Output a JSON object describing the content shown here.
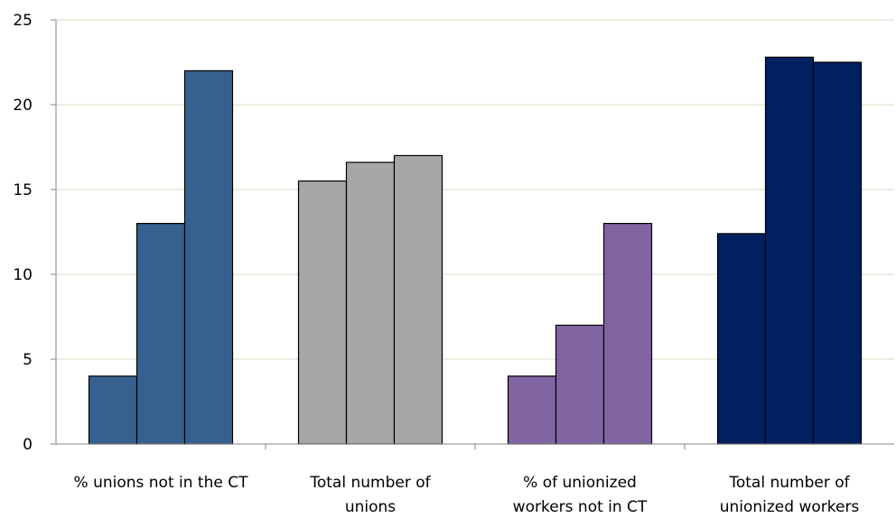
{
  "chart_data": {
    "type": "bar",
    "categories": [
      "% unions not in the CT",
      "Total number of unions",
      "% of unionized workers not in CT",
      "Total number of unionized workers"
    ],
    "category_lines": [
      [
        "% unions not in the CT"
      ],
      [
        "Total number of",
        "unions"
      ],
      [
        "% of unionized",
        "workers not in CT"
      ],
      [
        "Total number of",
        "unionized workers"
      ]
    ],
    "groups": [
      {
        "values": [
          4,
          13,
          22
        ],
        "color": "#36608F"
      },
      {
        "values": [
          15.5,
          16.6,
          17
        ],
        "color": "#A6A6A6"
      },
      {
        "values": [
          4,
          7,
          13
        ],
        "color": "#8064A2"
      },
      {
        "values": [
          12.4,
          22.8,
          22.5
        ],
        "color": "#002060"
      }
    ],
    "ylim": [
      0,
      25
    ],
    "yticks": [
      "0",
      "5",
      "10",
      "15",
      "20",
      "25"
    ],
    "grid": true,
    "legend": "none"
  }
}
